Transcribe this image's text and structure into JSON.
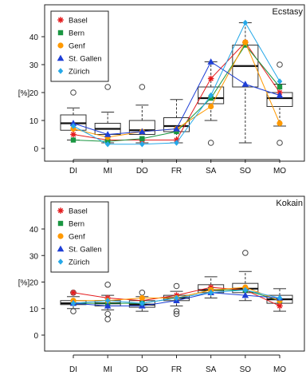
{
  "chart_data": [
    {
      "type": "box",
      "title": "Ecstasy",
      "xlabel": "",
      "ylabel": "[%]",
      "ylim": [
        -2,
        47
      ],
      "yticks": [
        0,
        10,
        20,
        30,
        40
      ],
      "categories": [
        "DI",
        "MI",
        "DO",
        "FR",
        "SA",
        "SO",
        "MO"
      ],
      "boxes": [
        {
          "whisker_low": 3,
          "q1": 6.5,
          "median": 9,
          "q3": 12,
          "whisker_high": 14.5,
          "outliers": [
            20
          ]
        },
        {
          "whisker_low": 2,
          "q1": 5,
          "median": 7,
          "q3": 9,
          "whisker_high": 13,
          "outliers": [
            22
          ]
        },
        {
          "whisker_low": 2,
          "q1": 5,
          "median": 6.5,
          "q3": 10,
          "whisker_high": 15.5,
          "outliers": [
            22
          ]
        },
        {
          "whisker_low": 2,
          "q1": 6,
          "median": 8,
          "q3": 11,
          "whisker_high": 17.5,
          "outliers": []
        },
        {
          "whisker_low": 10,
          "q1": 16,
          "median": 18,
          "q3": 22,
          "whisker_high": 31,
          "outliers": [
            2
          ]
        },
        {
          "whisker_low": 2,
          "q1": 22,
          "median": 29.5,
          "q3": 37,
          "whisker_high": 45,
          "outliers": []
        },
        {
          "whisker_low": 8,
          "q1": 15,
          "median": 18,
          "q3": 20,
          "whisker_high": 23,
          "outliers": [
            30,
            2
          ]
        }
      ],
      "series": [
        {
          "name": "Basel",
          "color": "#e41a1c",
          "marker": "asterisk",
          "values": [
            5,
            3,
            3,
            3,
            25,
            38,
            20
          ]
        },
        {
          "name": "Bern",
          "color": "#1a9641",
          "marker": "square",
          "values": [
            3,
            2.5,
            3.5,
            6,
            18,
            37,
            22
          ]
        },
        {
          "name": "Genf",
          "color": "#ff9900",
          "marker": "circle",
          "values": [
            7,
            4,
            6,
            7,
            15,
            38,
            9
          ]
        },
        {
          "name": "St. Gallen",
          "color": "#1f3fd6",
          "marker": "triangle",
          "values": [
            9,
            5,
            6,
            7,
            31,
            23,
            19
          ]
        },
        {
          "name": "Zürich",
          "color": "#26a8e8",
          "marker": "diamond",
          "values": [
            8,
            1.5,
            1.5,
            2,
            19,
            45,
            24
          ]
        }
      ],
      "legend_position": "top-left"
    },
    {
      "type": "box",
      "title": "Kokain",
      "xlabel": "",
      "ylabel": "[%]",
      "ylim": [
        -2,
        47
      ],
      "yticks": [
        0,
        10,
        20,
        30,
        40
      ],
      "categories": [
        "DI",
        "MI",
        "DO",
        "FR",
        "SA",
        "SO",
        "MO"
      ],
      "boxes": [
        {
          "whisker_low": 10,
          "q1": 11.5,
          "median": 12,
          "q3": 13,
          "whisker_high": 14.5,
          "outliers": [
            9,
            16
          ]
        },
        {
          "whisker_low": 9.5,
          "q1": 11,
          "median": 12,
          "q3": 13,
          "whisker_high": 15,
          "outliers": [
            19,
            8,
            6
          ]
        },
        {
          "whisker_low": 9,
          "q1": 10.5,
          "median": 11.5,
          "q3": 13,
          "whisker_high": 14.5,
          "outliers": [
            16
          ]
        },
        {
          "whisker_low": 11,
          "q1": 13,
          "median": 14,
          "q3": 15,
          "whisker_high": 16.5,
          "outliers": [
            18.5,
            9,
            8
          ]
        },
        {
          "whisker_low": 14,
          "q1": 16,
          "median": 17,
          "q3": 19,
          "whisker_high": 22,
          "outliers": []
        },
        {
          "whisker_low": 13,
          "q1": 16,
          "median": 17.5,
          "q3": 19.5,
          "whisker_high": 24,
          "outliers": [
            31
          ]
        },
        {
          "whisker_low": 9,
          "q1": 12,
          "median": 13.5,
          "q3": 15,
          "whisker_high": 17.5,
          "outliers": []
        }
      ],
      "series": [
        {
          "name": "Basel",
          "color": "#e41a1c",
          "marker": "asterisk",
          "values": [
            16,
            14,
            13,
            15,
            18,
            17,
            11
          ]
        },
        {
          "name": "Bern",
          "color": "#1a9641",
          "marker": "square",
          "values": [
            12,
            12,
            12,
            14,
            17,
            17,
            13
          ]
        },
        {
          "name": "Genf",
          "color": "#ff9900",
          "marker": "circle",
          "values": [
            13,
            13,
            14,
            14,
            17,
            18,
            13
          ]
        },
        {
          "name": "St. Gallen",
          "color": "#1f3fd6",
          "marker": "triangle",
          "values": [
            12,
            11,
            11,
            13,
            16,
            15,
            14
          ]
        },
        {
          "name": "Zürich",
          "color": "#26a8e8",
          "marker": "diamond",
          "values": [
            12,
            13,
            12,
            14,
            16,
            17,
            14
          ]
        }
      ],
      "legend_position": "top-left"
    }
  ]
}
